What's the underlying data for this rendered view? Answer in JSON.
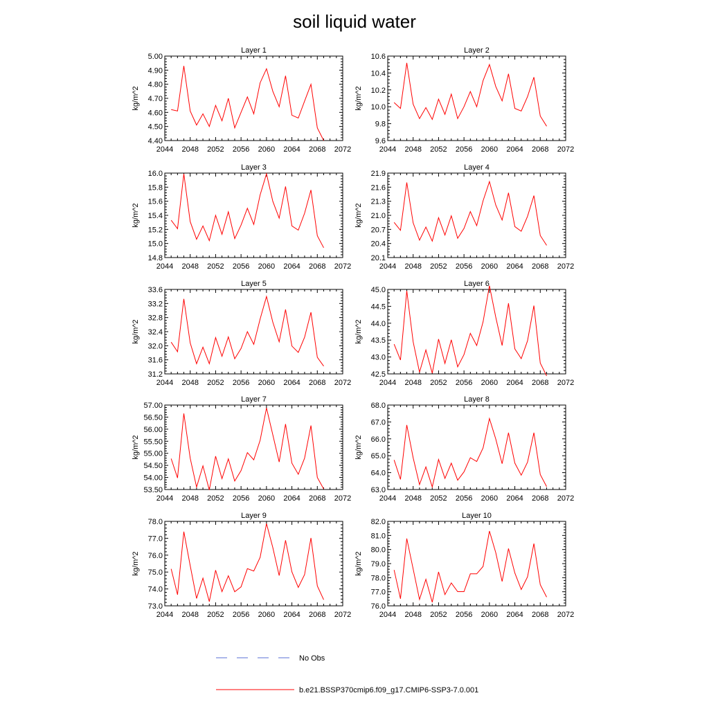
{
  "title": "soil liquid water",
  "legend": {
    "obs_label": "No Obs",
    "obs_color": "#5a6fd6",
    "model_label": "b.e21.BSSP370cmip6.f09_g17.CMIP6-SSP3-7.0.001",
    "model_color": "#ff0000"
  },
  "chart_data": [
    {
      "type": "line",
      "title": "Layer 1",
      "ylabel": "kg/m^2",
      "xlim": [
        2044,
        2072
      ],
      "ylim": [
        4.4,
        5.0
      ],
      "xticks": [
        2044,
        2048,
        2052,
        2056,
        2060,
        2064,
        2068,
        2072
      ],
      "yticks": [
        "4.40",
        "4.50",
        "4.60",
        "4.70",
        "4.80",
        "4.90",
        "5.00"
      ],
      "series": [
        {
          "x": [
            2045,
            2046,
            2047,
            2048,
            2049,
            2050,
            2051,
            2052,
            2053,
            2054,
            2055,
            2056,
            2057,
            2058,
            2059,
            2060,
            2061,
            2062,
            2063,
            2064,
            2065,
            2066,
            2067,
            2068,
            2069
          ],
          "values": [
            4.62,
            4.61,
            4.93,
            4.61,
            4.51,
            4.59,
            4.5,
            4.65,
            4.54,
            4.7,
            4.49,
            4.6,
            4.71,
            4.59,
            4.81,
            4.91,
            4.75,
            4.64,
            4.86,
            4.58,
            4.56,
            4.68,
            4.8,
            4.49,
            4.4
          ]
        }
      ]
    },
    {
      "type": "line",
      "title": "Layer 2",
      "ylabel": "kg/m^2",
      "xlim": [
        2044,
        2072
      ],
      "ylim": [
        9.6,
        10.6
      ],
      "xticks": [
        2044,
        2048,
        2052,
        2056,
        2060,
        2064,
        2068,
        2072
      ],
      "yticks": [
        "9.6",
        "9.8",
        "10.0",
        "10.2",
        "10.4",
        "10.6"
      ],
      "series": [
        {
          "x": [
            2045,
            2046,
            2047,
            2048,
            2049,
            2050,
            2051,
            2052,
            2053,
            2054,
            2055,
            2056,
            2057,
            2058,
            2059,
            2060,
            2061,
            2062,
            2063,
            2064,
            2065,
            2066,
            2067,
            2068,
            2069
          ],
          "values": [
            10.05,
            9.98,
            10.52,
            10.03,
            9.86,
            9.99,
            9.85,
            10.09,
            9.91,
            10.15,
            9.86,
            10.0,
            10.18,
            10.0,
            10.31,
            10.5,
            10.24,
            10.07,
            10.39,
            9.98,
            9.95,
            10.12,
            10.35,
            9.89,
            9.77
          ]
        }
      ]
    },
    {
      "type": "line",
      "title": "Layer 3",
      "ylabel": "kg/m^2",
      "xlim": [
        2044,
        2072
      ],
      "ylim": [
        14.8,
        16.0
      ],
      "xticks": [
        2044,
        2048,
        2052,
        2056,
        2060,
        2064,
        2068,
        2072
      ],
      "yticks": [
        "14.8",
        "15.0",
        "15.2",
        "15.4",
        "15.6",
        "15.8",
        "16.0"
      ],
      "series": [
        {
          "x": [
            2045,
            2046,
            2047,
            2048,
            2049,
            2050,
            2051,
            2052,
            2053,
            2054,
            2055,
            2056,
            2057,
            2058,
            2059,
            2060,
            2061,
            2062,
            2063,
            2064,
            2065,
            2066,
            2067,
            2068,
            2069
          ],
          "values": [
            15.33,
            15.21,
            15.99,
            15.31,
            15.06,
            15.25,
            15.04,
            15.4,
            15.13,
            15.45,
            15.07,
            15.26,
            15.5,
            15.27,
            15.69,
            15.99,
            15.6,
            15.36,
            15.81,
            15.25,
            15.19,
            15.43,
            15.76,
            15.11,
            14.94
          ]
        }
      ]
    },
    {
      "type": "line",
      "title": "Layer 4",
      "ylabel": "kg/m^2",
      "xlim": [
        2044,
        2072
      ],
      "ylim": [
        20.1,
        21.9
      ],
      "xticks": [
        2044,
        2048,
        2052,
        2056,
        2060,
        2064,
        2068,
        2072
      ],
      "yticks": [
        "20.1",
        "20.4",
        "20.7",
        "21.0",
        "21.3",
        "21.6",
        "21.9"
      ],
      "series": [
        {
          "x": [
            2045,
            2046,
            2047,
            2048,
            2049,
            2050,
            2051,
            2052,
            2053,
            2054,
            2055,
            2056,
            2057,
            2058,
            2059,
            2060,
            2061,
            2062,
            2063,
            2064,
            2065,
            2066,
            2067,
            2068,
            2069
          ],
          "values": [
            20.85,
            20.68,
            21.7,
            20.84,
            20.47,
            20.75,
            20.45,
            20.95,
            20.58,
            20.99,
            20.51,
            20.72,
            21.08,
            20.78,
            21.31,
            21.72,
            21.22,
            20.9,
            21.48,
            20.76,
            20.66,
            20.98,
            21.42,
            20.57,
            20.36
          ]
        }
      ]
    },
    {
      "type": "line",
      "title": "Layer 5",
      "ylabel": "kg/m^2",
      "xlim": [
        2044,
        2072
      ],
      "ylim": [
        31.2,
        33.6
      ],
      "xticks": [
        2044,
        2048,
        2052,
        2056,
        2060,
        2064,
        2068,
        2072
      ],
      "yticks": [
        "31.2",
        "31.6",
        "32.0",
        "32.4",
        "32.8",
        "33.2",
        "33.6"
      ],
      "series": [
        {
          "x": [
            2045,
            2046,
            2047,
            2048,
            2049,
            2050,
            2051,
            2052,
            2053,
            2054,
            2055,
            2056,
            2057,
            2058,
            2059,
            2060,
            2061,
            2062,
            2063,
            2064,
            2065,
            2066,
            2067,
            2068,
            2069
          ],
          "values": [
            32.1,
            31.83,
            33.33,
            32.08,
            31.49,
            31.96,
            31.49,
            32.23,
            31.7,
            32.25,
            31.63,
            31.92,
            32.4,
            32.04,
            32.76,
            33.4,
            32.67,
            32.11,
            33.03,
            31.99,
            31.81,
            32.24,
            32.95,
            31.67,
            31.42
          ]
        }
      ]
    },
    {
      "type": "line",
      "title": "Layer 6",
      "ylabel": "kg/m^2",
      "xlim": [
        2044,
        2072
      ],
      "ylim": [
        42.5,
        45.0
      ],
      "xticks": [
        2044,
        2048,
        2052,
        2056,
        2060,
        2064,
        2068,
        2072
      ],
      "yticks": [
        "42.5",
        "43.0",
        "43.5",
        "44.0",
        "44.5",
        "45.0"
      ],
      "series": [
        {
          "x": [
            2045,
            2046,
            2047,
            2048,
            2049,
            2050,
            2051,
            2052,
            2053,
            2054,
            2055,
            2056,
            2057,
            2058,
            2059,
            2060,
            2061,
            2062,
            2063,
            2064,
            2065,
            2066,
            2067,
            2068,
            2069
          ],
          "values": [
            43.38,
            42.91,
            44.96,
            43.45,
            42.55,
            43.21,
            42.52,
            43.53,
            42.81,
            43.51,
            42.71,
            43.07,
            43.7,
            43.34,
            44.04,
            45.11,
            44.18,
            43.34,
            44.59,
            43.24,
            42.95,
            43.48,
            44.52,
            42.82,
            42.44
          ]
        }
      ]
    },
    {
      "type": "line",
      "title": "Layer 7",
      "ylabel": "kg/m^2",
      "xlim": [
        2044,
        2072
      ],
      "ylim": [
        53.5,
        57.0
      ],
      "xticks": [
        2044,
        2048,
        2052,
        2056,
        2060,
        2064,
        2068,
        2072
      ],
      "yticks": [
        "53.50",
        "54.00",
        "54.50",
        "55.00",
        "55.50",
        "56.00",
        "56.50",
        "57.00"
      ],
      "series": [
        {
          "x": [
            2045,
            2046,
            2047,
            2048,
            2049,
            2050,
            2051,
            2052,
            2053,
            2054,
            2055,
            2056,
            2057,
            2058,
            2059,
            2060,
            2061,
            2062,
            2063,
            2064,
            2065,
            2066,
            2067,
            2068,
            2069
          ],
          "values": [
            54.78,
            53.98,
            56.65,
            54.8,
            53.6,
            54.48,
            53.48,
            54.88,
            53.95,
            54.77,
            53.85,
            54.28,
            55.03,
            54.73,
            55.54,
            56.88,
            55.77,
            54.64,
            56.21,
            54.59,
            54.13,
            54.8,
            56.15,
            54.0,
            53.52
          ]
        }
      ]
    },
    {
      "type": "line",
      "title": "Layer 8",
      "ylabel": "kg/m^2",
      "xlim": [
        2044,
        2072
      ],
      "ylim": [
        63.0,
        68.0
      ],
      "xticks": [
        2044,
        2048,
        2052,
        2056,
        2060,
        2064,
        2068,
        2072
      ],
      "yticks": [
        "63.0",
        "64.0",
        "65.0",
        "66.0",
        "67.0",
        "68.0"
      ],
      "series": [
        {
          "x": [
            2045,
            2046,
            2047,
            2048,
            2049,
            2050,
            2051,
            2052,
            2053,
            2054,
            2055,
            2056,
            2057,
            2058,
            2059,
            2060,
            2061,
            2062,
            2063,
            2064,
            2065,
            2066,
            2067,
            2068,
            2069
          ],
          "values": [
            64.75,
            63.6,
            66.82,
            64.88,
            63.29,
            64.34,
            63.15,
            64.78,
            63.66,
            64.56,
            63.55,
            64.04,
            64.88,
            64.66,
            65.46,
            67.2,
            65.99,
            64.53,
            66.36,
            64.56,
            63.85,
            64.62,
            66.36,
            63.89,
            63.17
          ]
        }
      ]
    },
    {
      "type": "line",
      "title": "Layer 9",
      "ylabel": "kg/m^2",
      "xlim": [
        2044,
        2072
      ],
      "ylim": [
        73.0,
        78.0
      ],
      "xticks": [
        2044,
        2048,
        2052,
        2056,
        2060,
        2064,
        2068,
        2072
      ],
      "yticks": [
        "73.0",
        "74.0",
        "75.0",
        "76.0",
        "77.0",
        "78.0"
      ],
      "series": [
        {
          "x": [
            2045,
            2046,
            2047,
            2048,
            2049,
            2050,
            2051,
            2052,
            2053,
            2054,
            2055,
            2056,
            2057,
            2058,
            2059,
            2060,
            2061,
            2062,
            2063,
            2064,
            2065,
            2066,
            2067,
            2068,
            2069
          ],
          "values": [
            75.19,
            73.66,
            77.39,
            75.38,
            73.44,
            74.64,
            73.25,
            75.11,
            73.84,
            74.78,
            73.83,
            74.12,
            75.2,
            75.06,
            75.87,
            77.87,
            76.45,
            74.79,
            76.88,
            75.01,
            74.09,
            74.85,
            77.02,
            74.18,
            73.36
          ]
        }
      ]
    },
    {
      "type": "line",
      "title": "Layer 10",
      "ylabel": "kg/m^2",
      "xlim": [
        2044,
        2072
      ],
      "ylim": [
        76.0,
        82.0
      ],
      "xticks": [
        2044,
        2048,
        2052,
        2056,
        2060,
        2064,
        2068,
        2072
      ],
      "yticks": [
        "76.0",
        "77.0",
        "78.0",
        "79.0",
        "80.0",
        "81.0",
        "82.0"
      ],
      "series": [
        {
          "x": [
            2045,
            2046,
            2047,
            2048,
            2049,
            2050,
            2051,
            2052,
            2053,
            2054,
            2055,
            2056,
            2057,
            2058,
            2059,
            2060,
            2061,
            2062,
            2063,
            2064,
            2065,
            2066,
            2067,
            2068,
            2069
          ],
          "values": [
            78.55,
            76.5,
            80.78,
            78.62,
            76.45,
            77.89,
            76.25,
            78.41,
            76.8,
            77.63,
            77.01,
            77.01,
            78.27,
            78.27,
            78.8,
            81.31,
            79.78,
            77.73,
            80.07,
            78.33,
            77.16,
            78.06,
            80.42,
            77.5,
            76.62
          ]
        }
      ]
    }
  ]
}
